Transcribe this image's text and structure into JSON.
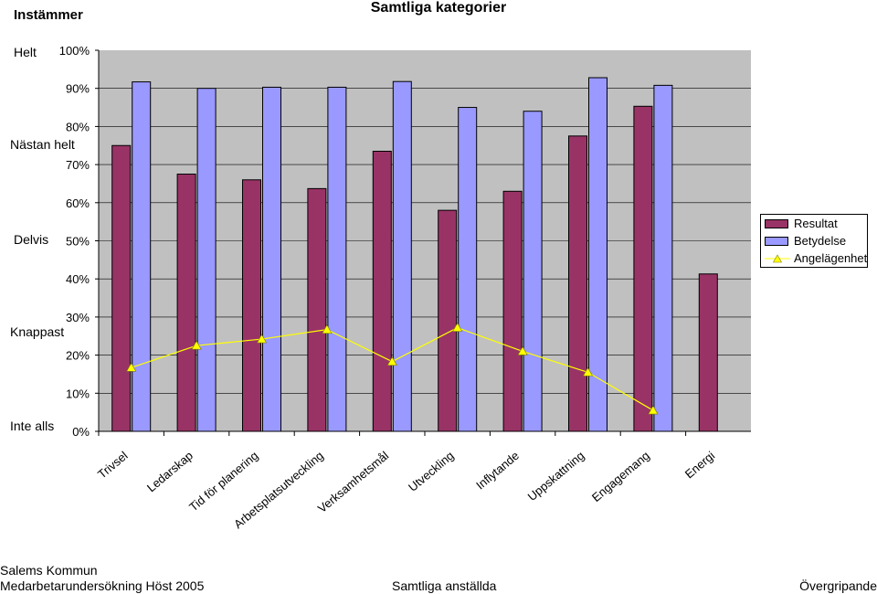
{
  "header": {
    "corner_label": "Instämmer",
    "title": "Samtliga kategorier"
  },
  "scale_labels": [
    "Helt",
    "Nästan helt",
    "Delvis",
    "Knappast",
    "Inte alls"
  ],
  "footer": {
    "org": "Salems Kommun",
    "survey": "Medarbetarundersökning Höst 2005",
    "group": "Samtliga anställda",
    "scope": "Övergripande"
  },
  "colors": {
    "resultat": "#993366",
    "betydelse": "#9999ff",
    "angelagenhet": "#ffff00",
    "plot_bg": "#c0c0c0"
  },
  "chart_data": {
    "type": "bar",
    "title": "Samtliga kategorier",
    "xlabel": "",
    "ylabel": "",
    "ylim": [
      0,
      100
    ],
    "yticks": [
      "0%",
      "10%",
      "20%",
      "30%",
      "40%",
      "50%",
      "60%",
      "70%",
      "80%",
      "90%",
      "100%"
    ],
    "grid": true,
    "legend_position": "right",
    "categories": [
      "Trivsel",
      "Ledarskap",
      "Tid för planering",
      "Arbetsplatsutveckling",
      "Verksamhetsmål",
      "Utveckling",
      "Inflytande",
      "Uppskattning",
      "Engagemang",
      "Energi"
    ],
    "series": [
      {
        "name": "Resultat",
        "kind": "bar",
        "values": [
          75,
          67.5,
          66,
          63.7,
          73.5,
          58,
          63,
          77.5,
          85.3,
          41.3
        ]
      },
      {
        "name": "Betydelse",
        "kind": "bar",
        "values": [
          91.7,
          90,
          90.3,
          90.3,
          91.8,
          85,
          84,
          92.8,
          90.8,
          null
        ]
      },
      {
        "name": "Angelägenhet",
        "kind": "line",
        "values": [
          16.7,
          22.5,
          24.2,
          26.7,
          18.3,
          27.2,
          21,
          15.5,
          5.5,
          null
        ]
      }
    ]
  }
}
